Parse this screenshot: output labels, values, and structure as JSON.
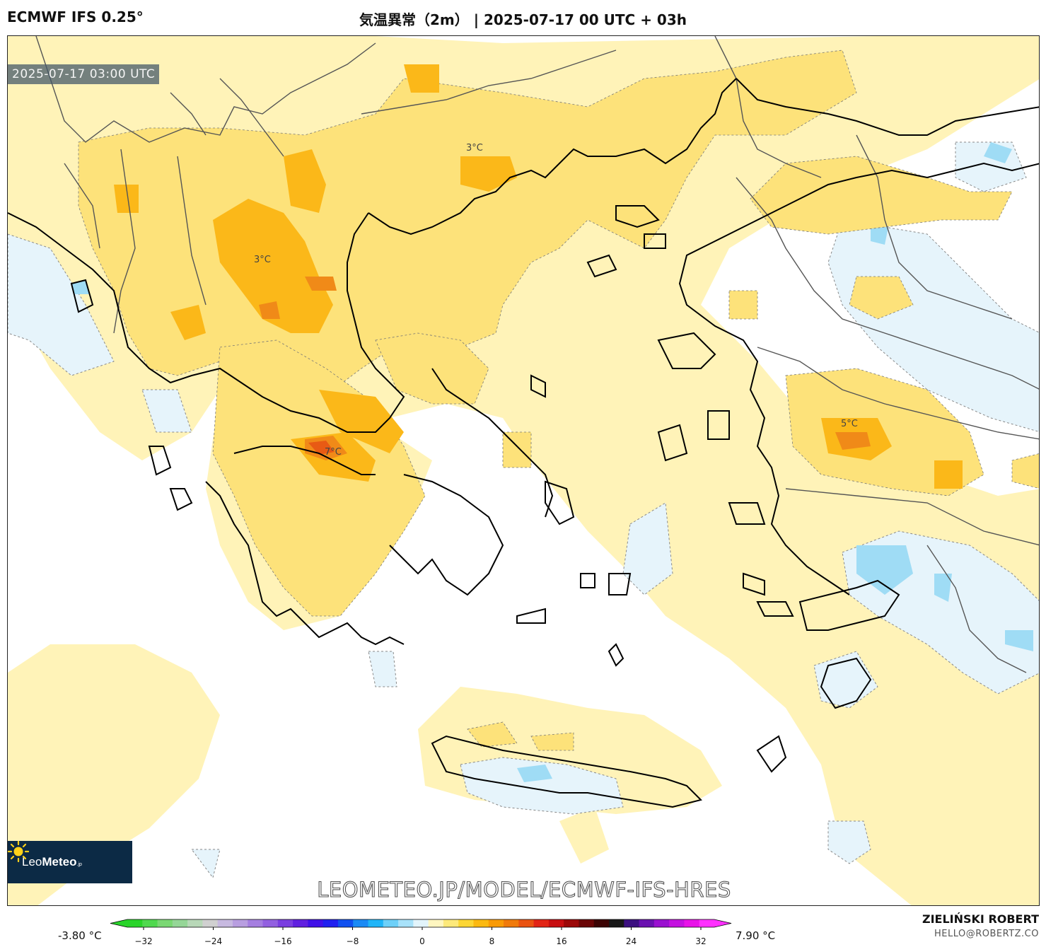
{
  "header": {
    "model": "ECMWF IFS 0.25°",
    "title": "気温異常（2m） | 2025-07-17 00 UTC + 03h"
  },
  "map": {
    "valid_time": "2025-07-17 03:00 UTC",
    "contour_labels": [
      "3°C",
      "3°C",
      "7°C",
      "5°C"
    ],
    "watermark": "LEOMETEO.JP/MODEL/ECMWF-IFS-HRES",
    "logo": {
      "prefix": "Leo",
      "bold": "Meteo",
      "suffix": ".jp"
    }
  },
  "colorbar": {
    "min_label": "-3.80 °C",
    "max_label": "7.90 °C",
    "ticks": [
      "−32",
      "−24",
      "−16",
      "−8",
      "0",
      "8",
      "16",
      "24",
      "32"
    ],
    "colors": [
      "#29d42a",
      "#4fd94e",
      "#7ad873",
      "#95d697",
      "#b8d8b8",
      "#d0d0d0",
      "#c7b9e0",
      "#b89ee0",
      "#a57ee0",
      "#9260e0",
      "#7a3ee0",
      "#6020e0",
      "#4010e8",
      "#2020f0",
      "#1050f0",
      "#1a8af5",
      "#20b5f8",
      "#6dd0f8",
      "#a8e2fa",
      "#e2f4fb",
      "#fff6c0",
      "#fde97a",
      "#fcd634",
      "#fbb910",
      "#f99a05",
      "#f07a0a",
      "#ea5210",
      "#e22415",
      "#c80e10",
      "#9c0808",
      "#6a0506",
      "#3c0404",
      "#181818",
      "#3c1080",
      "#6a10b0",
      "#9a10d0",
      "#c410e0",
      "#e812e8",
      "#ff30ff"
    ]
  },
  "footer": {
    "author": "ZIELIŃSKI ROBERT",
    "email": "HELLO@ROBERTZ.CO"
  }
}
